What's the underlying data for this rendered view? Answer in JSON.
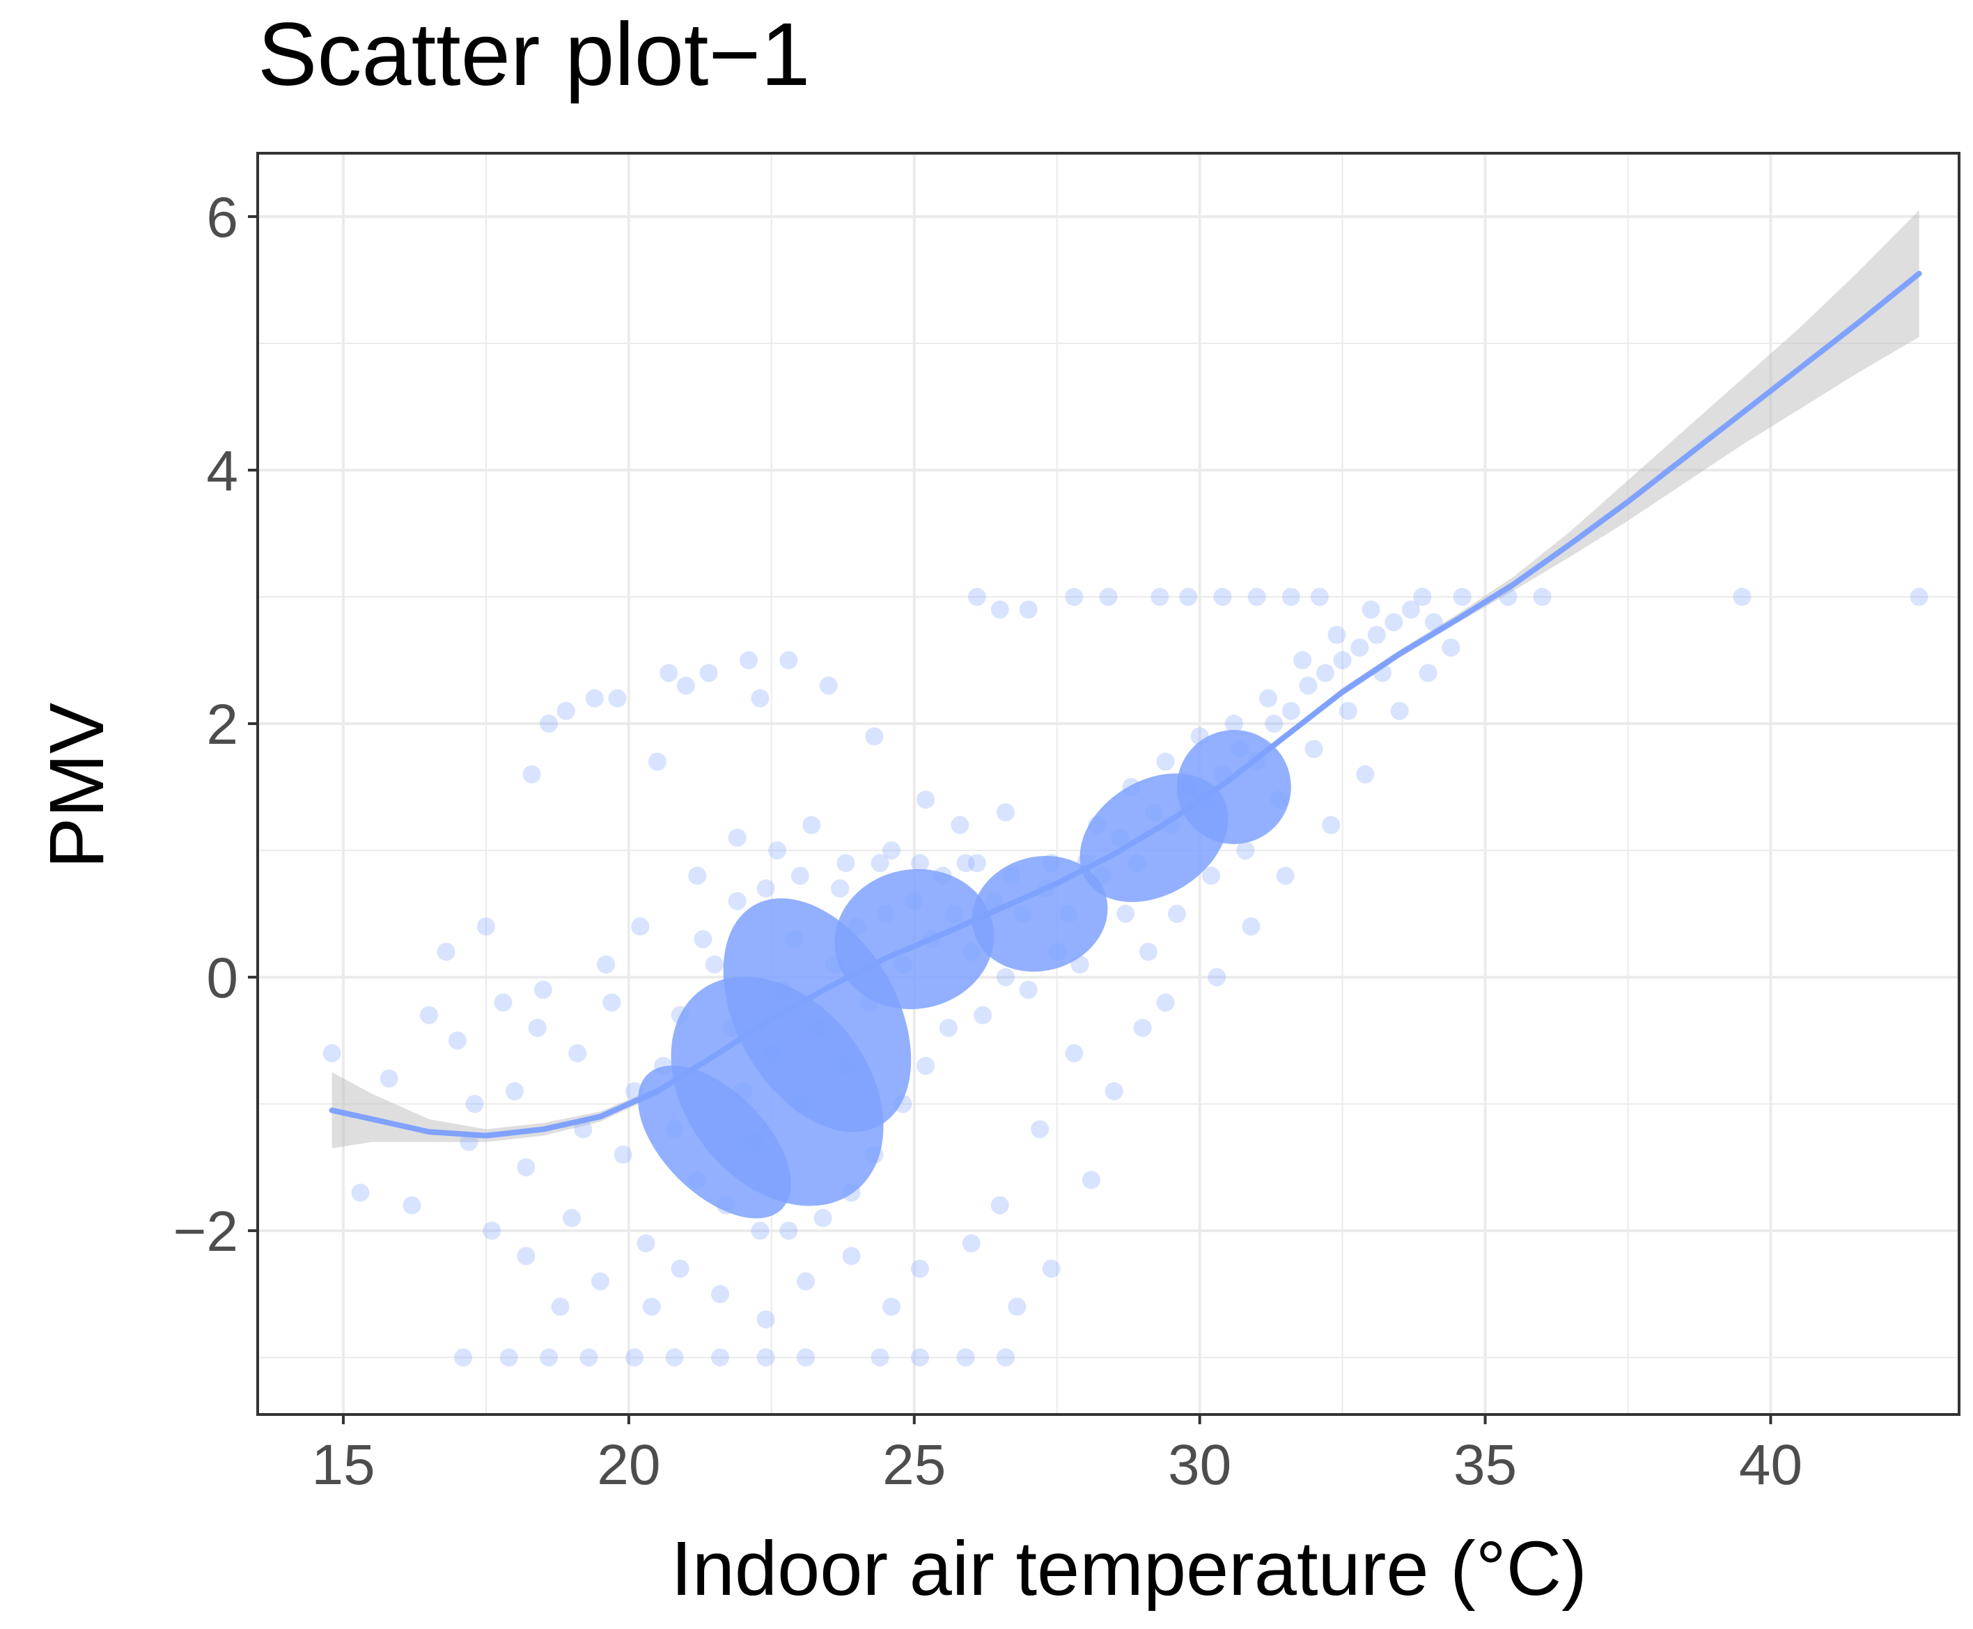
{
  "chart_data": {
    "type": "scatter",
    "title": "Scatter plot−1",
    "xlabel": "Indoor air temperature (°C)",
    "ylabel": "PMV",
    "xlim": [
      13.5,
      43.3
    ],
    "ylim": [
      -3.45,
      6.5
    ],
    "x_ticks": [
      15,
      20,
      25,
      30,
      35,
      40
    ],
    "x_tick_labels": [
      "15",
      "20",
      "25",
      "30",
      "35",
      "40"
    ],
    "y_ticks": [
      -2,
      0,
      2,
      4,
      6
    ],
    "y_tick_labels": [
      "−2",
      "0",
      "2",
      "4",
      "6"
    ],
    "grid": true,
    "legend": "none",
    "colors": {
      "points": "#7fa2ff",
      "fit_line": "#7fa2ff",
      "confidence_band": "#bebebe",
      "grid": "#ebebeb",
      "panel_border": "#333333"
    },
    "series": [
      {
        "role": "observations",
        "points": [
          [
            14.8,
            -0.6
          ],
          [
            15.3,
            -1.7
          ],
          [
            15.8,
            -0.8
          ],
          [
            16.2,
            -1.8
          ],
          [
            16.5,
            -0.3
          ],
          [
            16.8,
            0.2
          ],
          [
            17.0,
            -0.5
          ],
          [
            17.2,
            -1.3
          ],
          [
            17.5,
            0.4
          ],
          [
            17.8,
            -0.2
          ],
          [
            18.0,
            -0.9
          ],
          [
            18.2,
            -1.5
          ],
          [
            18.4,
            -0.4
          ],
          [
            18.3,
            1.6
          ],
          [
            18.6,
            2.0
          ],
          [
            18.9,
            2.1
          ],
          [
            19.1,
            -0.6
          ],
          [
            19.2,
            -1.2
          ],
          [
            19.4,
            2.2
          ],
          [
            19.7,
            -0.2
          ],
          [
            19.8,
            2.2
          ],
          [
            20.1,
            -0.9
          ],
          [
            20.5,
            1.7
          ],
          [
            20.3,
            -2.1
          ],
          [
            20.7,
            2.4
          ],
          [
            21.0,
            2.3
          ],
          [
            21.4,
            2.4
          ],
          [
            22.1,
            2.5
          ],
          [
            22.3,
            2.2
          ],
          [
            22.8,
            2.5
          ],
          [
            23.5,
            2.3
          ],
          [
            24.3,
            1.9
          ],
          [
            25.2,
            1.4
          ],
          [
            25.8,
            1.2
          ],
          [
            26.1,
            0.9
          ],
          [
            26.6,
            1.3
          ],
          [
            21.2,
            0.8
          ],
          [
            21.9,
            1.1
          ],
          [
            22.6,
            1.0
          ],
          [
            23.2,
            1.2
          ],
          [
            23.8,
            0.9
          ],
          [
            24.6,
            1.0
          ],
          [
            25.5,
            0.8
          ],
          [
            20.4,
            -2.6
          ],
          [
            20.9,
            -2.3
          ],
          [
            21.6,
            -2.5
          ],
          [
            22.4,
            -2.7
          ],
          [
            23.1,
            -2.4
          ],
          [
            23.9,
            -2.2
          ],
          [
            24.6,
            -2.6
          ],
          [
            25.1,
            -2.3
          ],
          [
            26.0,
            -2.1
          ],
          [
            26.8,
            -2.6
          ],
          [
            27.4,
            -2.3
          ],
          [
            28.1,
            -1.6
          ],
          [
            28.5,
            -0.9
          ],
          [
            29.0,
            -0.4
          ],
          [
            27.8,
            -0.6
          ],
          [
            27.2,
            -1.2
          ],
          [
            26.5,
            -1.8
          ],
          [
            17.1,
            -3.0
          ],
          [
            17.9,
            -3.0
          ],
          [
            18.6,
            -3.0
          ],
          [
            19.3,
            -3.0
          ],
          [
            20.1,
            -3.0
          ],
          [
            20.8,
            -3.0
          ],
          [
            21.6,
            -3.0
          ],
          [
            22.4,
            -3.0
          ],
          [
            23.1,
            -3.0
          ],
          [
            24.4,
            -3.0
          ],
          [
            25.1,
            -3.0
          ],
          [
            25.9,
            -3.0
          ],
          [
            26.6,
            -3.0
          ],
          [
            26.1,
            3.0
          ],
          [
            26.5,
            2.9
          ],
          [
            27.0,
            2.9
          ],
          [
            27.8,
            3.0
          ],
          [
            28.4,
            3.0
          ],
          [
            29.3,
            3.0
          ],
          [
            29.8,
            3.0
          ],
          [
            30.4,
            3.0
          ],
          [
            31.0,
            3.0
          ],
          [
            31.6,
            3.0
          ],
          [
            32.1,
            3.0
          ],
          [
            34.6,
            3.0
          ],
          [
            35.4,
            3.0
          ],
          [
            36.0,
            3.0
          ],
          [
            39.5,
            3.0
          ],
          [
            42.6,
            3.0
          ],
          [
            21.5,
            0.1
          ],
          [
            21.8,
            -0.4
          ],
          [
            22.0,
            -0.9
          ],
          [
            22.2,
            -1.3
          ],
          [
            22.5,
            -0.6
          ],
          [
            22.7,
            -0.1
          ],
          [
            22.9,
            0.3
          ],
          [
            23.0,
            -1.0
          ],
          [
            23.3,
            -0.4
          ],
          [
            23.6,
            0.1
          ],
          [
            23.8,
            -0.7
          ],
          [
            24.0,
            0.4
          ],
          [
            24.2,
            -0.2
          ],
          [
            24.5,
            0.5
          ],
          [
            24.8,
            0.1
          ],
          [
            25.0,
            0.6
          ],
          [
            25.3,
            0.3
          ],
          [
            25.7,
            0.5
          ],
          [
            26.0,
            0.2
          ],
          [
            26.4,
            0.6
          ],
          [
            26.9,
            0.5
          ],
          [
            27.3,
            0.7
          ],
          [
            27.7,
            0.5
          ],
          [
            28.0,
            0.9
          ],
          [
            28.3,
            0.8
          ],
          [
            28.6,
            1.1
          ],
          [
            28.9,
            0.9
          ],
          [
            29.2,
            1.3
          ],
          [
            29.5,
            1.2
          ],
          [
            29.8,
            1.5
          ],
          [
            30.1,
            1.4
          ],
          [
            30.4,
            1.6
          ],
          [
            30.7,
            1.8
          ],
          [
            31.0,
            1.7
          ],
          [
            31.3,
            2.0
          ],
          [
            31.6,
            2.1
          ],
          [
            31.9,
            2.3
          ],
          [
            32.2,
            2.4
          ],
          [
            32.5,
            2.5
          ],
          [
            32.8,
            2.6
          ],
          [
            33.1,
            2.7
          ],
          [
            33.4,
            2.8
          ],
          [
            33.7,
            2.9
          ],
          [
            33.9,
            3.0
          ],
          [
            34.1,
            2.8
          ],
          [
            33.2,
            2.4
          ],
          [
            32.6,
            2.1
          ],
          [
            32.0,
            1.8
          ],
          [
            31.4,
            1.4
          ],
          [
            30.8,
            1.0
          ],
          [
            30.2,
            0.8
          ],
          [
            29.6,
            0.5
          ],
          [
            29.1,
            0.2
          ],
          [
            28.7,
            0.5
          ],
          [
            27.9,
            0.1
          ],
          [
            27.5,
            0.2
          ],
          [
            27.0,
            -0.1
          ],
          [
            26.6,
            0.0
          ],
          [
            26.2,
            -0.3
          ],
          [
            25.6,
            -0.4
          ],
          [
            25.2,
            -0.7
          ],
          [
            24.8,
            -1.0
          ],
          [
            24.3,
            -1.4
          ],
          [
            23.9,
            -1.7
          ],
          [
            23.4,
            -1.9
          ],
          [
            22.8,
            -2.0
          ],
          [
            22.3,
            -2.0
          ],
          [
            21.7,
            -1.8
          ],
          [
            21.2,
            -1.6
          ],
          [
            20.8,
            -1.2
          ],
          [
            20.6,
            -0.7
          ],
          [
            20.9,
            -0.3
          ],
          [
            21.3,
            0.3
          ],
          [
            21.9,
            0.6
          ],
          [
            22.4,
            0.7
          ],
          [
            23.0,
            0.8
          ],
          [
            23.7,
            0.7
          ],
          [
            24.4,
            0.9
          ],
          [
            25.1,
            0.9
          ],
          [
            25.9,
            0.9
          ],
          [
            26.7,
            0.8
          ],
          [
            27.4,
            0.9
          ],
          [
            28.2,
            1.2
          ],
          [
            28.8,
            1.5
          ],
          [
            29.4,
            1.7
          ],
          [
            30.0,
            1.9
          ],
          [
            30.6,
            2.0
          ],
          [
            31.2,
            2.2
          ],
          [
            31.8,
            2.5
          ],
          [
            32.4,
            2.7
          ],
          [
            33.0,
            2.9
          ],
          [
            19.0,
            -1.9
          ],
          [
            19.5,
            -2.4
          ],
          [
            18.8,
            -2.6
          ],
          [
            18.2,
            -2.2
          ],
          [
            17.6,
            -2.0
          ],
          [
            17.3,
            -1.0
          ],
          [
            18.5,
            -0.1
          ],
          [
            19.6,
            0.1
          ],
          [
            20.2,
            0.4
          ],
          [
            19.9,
            -1.4
          ],
          [
            29.4,
            -0.2
          ],
          [
            30.3,
            0.0
          ],
          [
            30.9,
            0.4
          ],
          [
            31.5,
            0.8
          ],
          [
            32.3,
            1.2
          ],
          [
            32.9,
            1.6
          ],
          [
            33.5,
            2.1
          ],
          [
            34.0,
            2.4
          ],
          [
            34.4,
            2.6
          ]
        ]
      },
      {
        "role": "dense_cloud",
        "ellipses": [
          {
            "cx": 22.6,
            "cy": -0.9,
            "rx": 1.6,
            "ry": 1.0,
            "rotate_deg": 38
          },
          {
            "cx": 23.3,
            "cy": -0.3,
            "rx": 1.4,
            "ry": 1.0,
            "rotate_deg": 30
          },
          {
            "cx": 25.0,
            "cy": 0.3,
            "rx": 1.4,
            "ry": 0.55,
            "rotate_deg": 10
          },
          {
            "cx": 27.2,
            "cy": 0.5,
            "rx": 1.2,
            "ry": 0.45,
            "rotate_deg": 15
          },
          {
            "cx": 29.2,
            "cy": 1.1,
            "rx": 1.4,
            "ry": 0.45,
            "rotate_deg": 32
          },
          {
            "cx": 30.6,
            "cy": 1.5,
            "rx": 1.0,
            "ry": 0.45,
            "rotate_deg": 40
          },
          {
            "cx": 21.5,
            "cy": -1.3,
            "rx": 0.9,
            "ry": 0.75,
            "rotate_deg": 45
          }
        ]
      },
      {
        "role": "smooth_fit",
        "x": [
          14.8,
          15.5,
          16.5,
          17.5,
          18.5,
          19.5,
          20.5,
          21.5,
          22.5,
          23.5,
          24.5,
          25.5,
          26.5,
          27.5,
          28.5,
          29.5,
          30.5,
          31.5,
          32.5,
          33.5,
          34.5,
          35.5,
          36.5,
          37.5,
          38.5,
          39.5,
          40.5,
          41.5,
          42.6
        ],
        "y": [
          -1.05,
          -1.12,
          -1.22,
          -1.25,
          -1.2,
          -1.1,
          -0.9,
          -0.62,
          -0.33,
          -0.08,
          0.15,
          0.34,
          0.54,
          0.74,
          0.97,
          1.24,
          1.55,
          1.9,
          2.25,
          2.55,
          2.82,
          3.1,
          3.42,
          3.75,
          4.1,
          4.45,
          4.8,
          5.15,
          5.55
        ],
        "ci_lower": [
          -1.35,
          -1.3,
          -1.3,
          -1.3,
          -1.25,
          -1.14,
          -0.93,
          -0.64,
          -0.35,
          -0.1,
          0.13,
          0.32,
          0.52,
          0.72,
          0.95,
          1.22,
          1.53,
          1.88,
          2.22,
          2.52,
          2.79,
          3.05,
          3.32,
          3.6,
          3.9,
          4.2,
          4.48,
          4.76,
          5.05
        ],
        "ci_upper": [
          -0.75,
          -0.92,
          -1.12,
          -1.2,
          -1.15,
          -1.06,
          -0.87,
          -0.6,
          -0.31,
          -0.06,
          0.17,
          0.36,
          0.56,
          0.76,
          0.99,
          1.26,
          1.57,
          1.92,
          2.28,
          2.58,
          2.86,
          3.16,
          3.52,
          3.92,
          4.32,
          4.72,
          5.12,
          5.55,
          6.05
        ]
      }
    ]
  }
}
